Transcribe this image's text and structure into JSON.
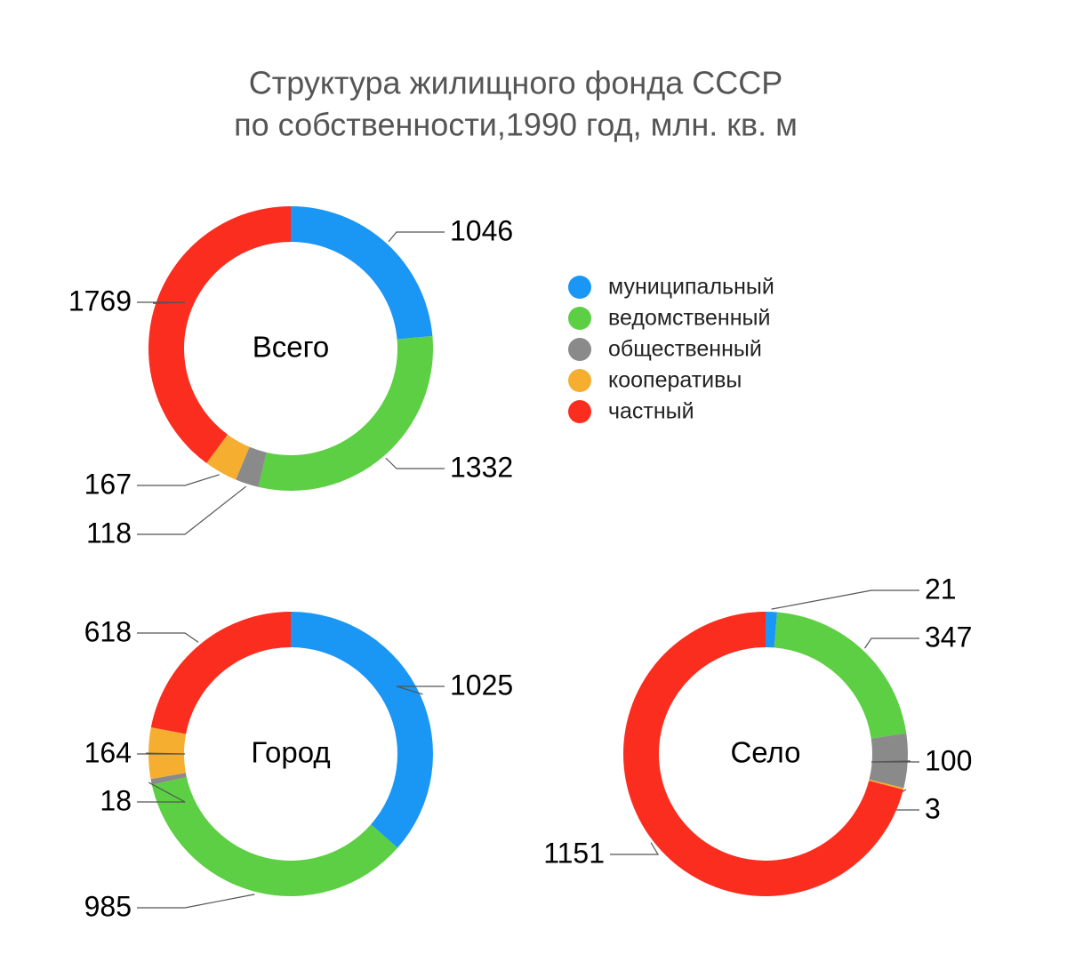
{
  "title": [
    "Структура жилищного фонда СССР",
    "по собственности,1990 год, млн. кв. м"
  ],
  "categories": [
    "муниципальный",
    "ведомственный",
    "общественный",
    "кооперативы",
    "частный"
  ],
  "colors": [
    "#1a96f5",
    "#5dcf44",
    "#8a8a8a",
    "#f5ae2f",
    "#fa2d1f"
  ],
  "chart_data": [
    {
      "type": "pie",
      "title": "Всего",
      "values": [
        1046,
        1332,
        118,
        167,
        1769
      ]
    },
    {
      "type": "pie",
      "title": "Город",
      "values": [
        1025,
        985,
        18,
        164,
        618
      ]
    },
    {
      "type": "pie",
      "title": "Село",
      "values": [
        21,
        347,
        100,
        3,
        1151
      ]
    }
  ]
}
